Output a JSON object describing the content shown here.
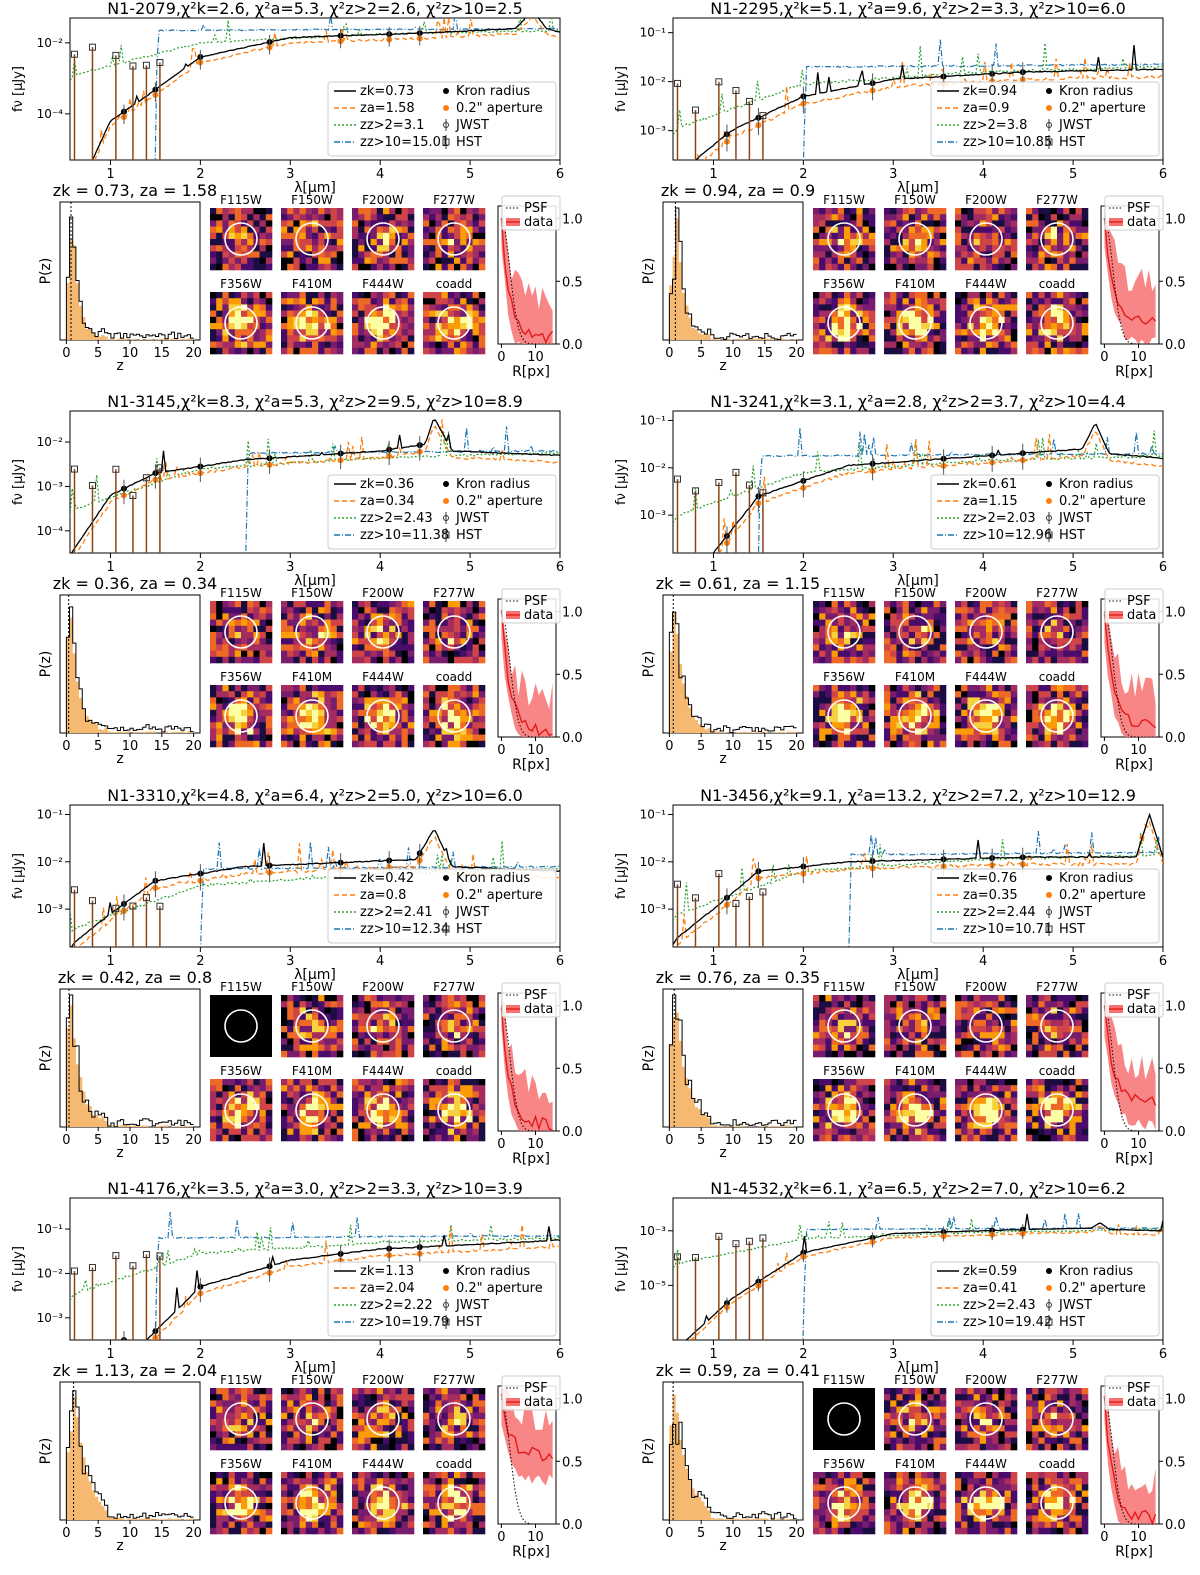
{
  "chart_data": {
    "type": "figure-grid",
    "legend_labels": {
      "kron": "Kron radius",
      "aperture": "0.2\" aperture",
      "jwst": "JWST",
      "hst": "HST",
      "psf": "PSF",
      "data": "data"
    },
    "axis_labels": {
      "sed_x": "λ[μm]",
      "sed_y": "fν [μJy]",
      "pz_x": "z",
      "pz_y": "P(z)",
      "prof_x": "R[px]"
    },
    "sed_x_ticks": [
      "1",
      "2",
      "3",
      "4",
      "5",
      "6"
    ],
    "pz_x_ticks": [
      "0",
      "5",
      "10",
      "15",
      "20"
    ],
    "prof_x_ticks": [
      "0",
      "10"
    ],
    "prof_y_ticks": [
      "0.0",
      "0.5",
      "1.0"
    ],
    "filters": [
      "F115W",
      "F150W",
      "F200W",
      "F277W",
      "F356W",
      "F410M",
      "F444W",
      "coadd"
    ],
    "colors": {
      "kron": "#000000",
      "aperture": "#ff7f0e",
      "zgt2": "#2ca02c",
      "zgt10": "#1f77b4",
      "hst": "#8b4513",
      "profile": "#e31a1c",
      "profile_band": "#f87171",
      "pz_fill": "#f5b971"
    },
    "objects": [
      {
        "id": "N1-2079",
        "title": "N1-2079,χ²k=2.6, χ²a=5.3, χ²z>2=2.6, χ²z>10=2.5",
        "zk": 0.73,
        "za": 1.58,
        "zgt2": 3.1,
        "zgt10": 15.01,
        "legend": [
          "zk=0.73",
          "za=1.58",
          "zz>2=3.1",
          "zz>10=15.01"
        ],
        "pz_title": "zk = 0.73, za = 1.58",
        "sed_ylog": [
          -5.3,
          -1.3
        ],
        "sed_yticks": [
          "10⁻⁴",
          "10⁻²"
        ],
        "sed_ytick_exp": [
          -4,
          -2
        ],
        "kron_curve": [
          [
            0.8,
            -5.3
          ],
          [
            1.0,
            -4.2
          ],
          [
            1.4,
            -3.5
          ],
          [
            2.0,
            -2.4
          ],
          [
            3.0,
            -1.85
          ],
          [
            4.5,
            -1.72
          ],
          [
            5.5,
            -1.6
          ],
          [
            5.7,
            -1.1
          ],
          [
            5.85,
            -1.6
          ],
          [
            6.0,
            -1.7
          ]
        ],
        "f115w_blank": false,
        "prof_tail": 0.05
      },
      {
        "id": "N1-2295",
        "title": "N1-2295,χ²k=5.1, χ²a=9.6, χ²z>2=3.3, χ²z>10=6.0",
        "zk": 0.94,
        "za": 0.9,
        "zgt2": 3.8,
        "zgt10": 10.85,
        "legend": [
          "zk=0.94",
          "za=0.9",
          "zz>2=3.8",
          "zz>10=10.85"
        ],
        "pz_title": "zk = 0.94, za = 0.9",
        "sed_ylog": [
          -3.6,
          -0.7
        ],
        "sed_yticks": [
          "10⁻³",
          "10⁻²",
          "10⁻¹"
        ],
        "sed_ytick_exp": [
          -3,
          -2,
          -1
        ],
        "kron_curve": [
          [
            0.8,
            -3.6
          ],
          [
            1.2,
            -3.0
          ],
          [
            2.0,
            -2.3
          ],
          [
            3.0,
            -1.95
          ],
          [
            4.5,
            -1.8
          ],
          [
            6.0,
            -1.75
          ]
        ],
        "f115w_blank": false,
        "prof_tail": 0.2
      },
      {
        "id": "N1-3145",
        "title": "N1-3145,χ²k=8.3, χ²a=5.3, χ²z>2=9.5, χ²z>10=8.9",
        "zk": 0.36,
        "za": 0.34,
        "zgt2": 2.43,
        "zgt10": 11.38,
        "legend": [
          "zk=0.36",
          "za=0.34",
          "zz>2=2.43",
          "zz>10=11.38"
        ],
        "pz_title": "zk = 0.36, za = 0.34",
        "sed_ylog": [
          -4.5,
          -1.3
        ],
        "sed_yticks": [
          "10⁻⁴",
          "10⁻³",
          "10⁻²"
        ],
        "sed_ytick_exp": [
          -4,
          -3,
          -2
        ],
        "kron_curve": [
          [
            0.6,
            -4.4
          ],
          [
            1.0,
            -3.2
          ],
          [
            1.5,
            -2.7
          ],
          [
            2.5,
            -2.4
          ],
          [
            4.0,
            -2.2
          ],
          [
            4.5,
            -2.05
          ],
          [
            4.6,
            -1.45
          ],
          [
            4.8,
            -2.2
          ],
          [
            6.0,
            -2.3
          ]
        ],
        "f115w_blank": false,
        "prof_tail": 0.05
      },
      {
        "id": "N1-3241",
        "title": "N1-3241,χ²k=3.1, χ²a=2.8, χ²z>2=3.7, χ²z>10=4.4",
        "zk": 0.61,
        "za": 1.15,
        "zgt2": 2.03,
        "zgt10": 12.96,
        "legend": [
          "zk=0.61",
          "za=1.15",
          "zz>2=2.03",
          "zz>10=12.96"
        ],
        "pz_title": "zk = 0.61, za = 1.15",
        "sed_ylog": [
          -3.8,
          -0.8
        ],
        "sed_yticks": [
          "10⁻³",
          "10⁻²",
          "10⁻¹"
        ],
        "sed_ytick_exp": [
          -3,
          -2,
          -1
        ],
        "kron_curve": [
          [
            1.0,
            -3.8
          ],
          [
            1.5,
            -2.6
          ],
          [
            2.5,
            -1.95
          ],
          [
            4.0,
            -1.75
          ],
          [
            5.1,
            -1.6
          ],
          [
            5.25,
            -1.05
          ],
          [
            5.4,
            -1.7
          ],
          [
            6.0,
            -1.8
          ]
        ],
        "f115w_blank": false,
        "prof_tail": 0.1
      },
      {
        "id": "N1-3310",
        "title": "N1-3310,χ²k=4.8, χ²a=6.4, χ²z>2=5.0, χ²z>10=6.0",
        "zk": 0.42,
        "za": 0.8,
        "zgt2": 2.41,
        "zgt10": 12.34,
        "legend": [
          "zk=0.42",
          "za=0.8",
          "zz>2=2.41",
          "zz>10=12.34"
        ],
        "pz_title": "zk = 0.42, za = 0.8",
        "sed_ylog": [
          -3.8,
          -0.8
        ],
        "sed_yticks": [
          "10⁻³",
          "10⁻²",
          "10⁻¹"
        ],
        "sed_ytick_exp": [
          -3,
          -2,
          -1
        ],
        "kron_curve": [
          [
            0.6,
            -3.7
          ],
          [
            1.0,
            -3.1
          ],
          [
            1.5,
            -2.4
          ],
          [
            2.5,
            -2.1
          ],
          [
            4.4,
            -1.95
          ],
          [
            4.6,
            -1.3
          ],
          [
            4.8,
            -2.1
          ],
          [
            6.0,
            -2.2
          ]
        ],
        "f115w_blank": true,
        "prof_tail": 0.05
      },
      {
        "id": "N1-3456",
        "title": "N1-3456,χ²k=9.1, χ²a=13.2, χ²z>2=7.2, χ²z>10=12.9",
        "zk": 0.76,
        "za": 0.35,
        "zgt2": 2.44,
        "zgt10": 10.71,
        "legend": [
          "zk=0.76",
          "za=0.35",
          "zz>2=2.44",
          "zz>10=10.71"
        ],
        "pz_title": "zk = 0.76, za = 0.35",
        "sed_ylog": [
          -3.8,
          -0.8
        ],
        "sed_yticks": [
          "10⁻³",
          "10⁻²",
          "10⁻¹"
        ],
        "sed_ytick_exp": [
          -3,
          -2,
          -1
        ],
        "kron_curve": [
          [
            0.6,
            -3.6
          ],
          [
            1.0,
            -3.0
          ],
          [
            1.5,
            -2.2
          ],
          [
            2.5,
            -2.0
          ],
          [
            4.5,
            -1.9
          ],
          [
            5.7,
            -1.9
          ],
          [
            5.85,
            -1.0
          ],
          [
            6.0,
            -1.9
          ]
        ],
        "f115w_blank": false,
        "prof_tail": 0.25
      },
      {
        "id": "N1-4176",
        "title": "N1-4176,χ²k=3.5, χ²a=3.0, χ²z>2=3.3, χ²z>10=3.9",
        "zk": 1.13,
        "za": 2.04,
        "zgt2": 2.22,
        "zgt10": 19.79,
        "legend": [
          "zk=1.13",
          "za=2.04",
          "zz>2=2.22",
          "zz>10=19.79"
        ],
        "pz_title": "zk = 1.13, za = 2.04",
        "sed_ylog": [
          -3.5,
          -0.3
        ],
        "sed_yticks": [
          "10⁻³",
          "10⁻²",
          "10⁻¹"
        ],
        "sed_ytick_exp": [
          -3,
          -2,
          -1
        ],
        "kron_curve": [
          [
            1.4,
            -3.5
          ],
          [
            2.0,
            -2.3
          ],
          [
            3.0,
            -1.7
          ],
          [
            4.0,
            -1.45
          ],
          [
            5.0,
            -1.35
          ],
          [
            6.0,
            -1.25
          ]
        ],
        "f115w_blank": false,
        "prof_tail": 0.55
      },
      {
        "id": "N1-4532",
        "title": "N1-4532,χ²k=6.1, χ²a=6.5, χ²z>2=7.0, χ²z>10=6.2",
        "zk": 0.59,
        "za": 0.41,
        "zgt2": 2.43,
        "zgt10": 19.42,
        "legend": [
          "zk=0.59",
          "za=0.41",
          "zz>2=2.43",
          "zz>10=19.42"
        ],
        "pz_title": "zk = 0.59, za = 0.41",
        "sed_ylog": [
          -7.0,
          -1.8
        ],
        "sed_yticks": [
          "10⁻⁵",
          "10⁻³"
        ],
        "sed_ytick_exp": [
          -5,
          -3
        ],
        "kron_curve": [
          [
            0.7,
            -7.0
          ],
          [
            1.2,
            -5.5
          ],
          [
            2.0,
            -3.8
          ],
          [
            3.0,
            -3.1
          ],
          [
            4.5,
            -2.95
          ],
          [
            5.2,
            -2.9
          ],
          [
            5.3,
            -2.7
          ],
          [
            5.4,
            -2.95
          ],
          [
            6.0,
            -3.0
          ]
        ],
        "f115w_blank": true,
        "prof_tail": 0.05
      }
    ]
  }
}
